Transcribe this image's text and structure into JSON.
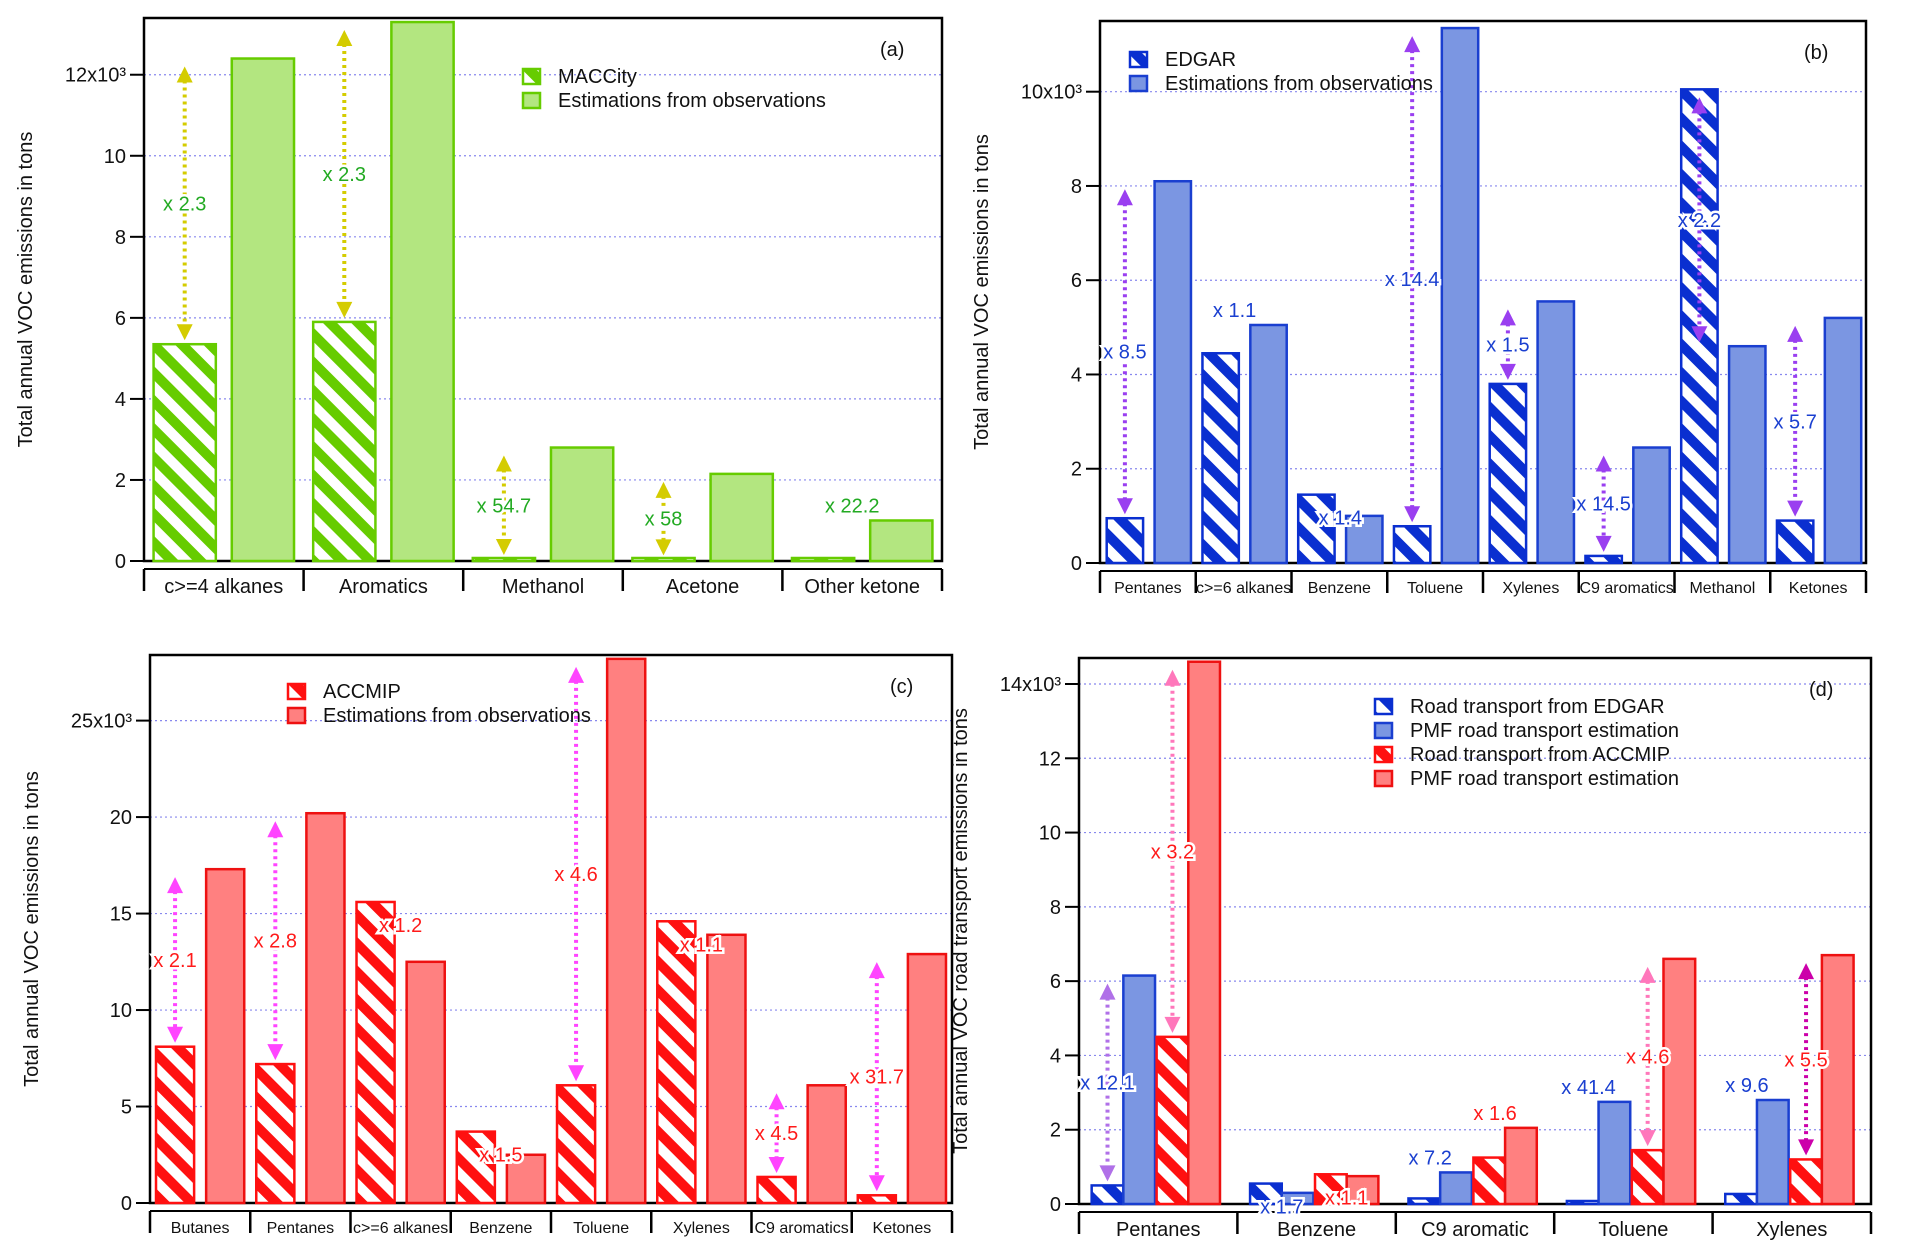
{
  "chart_data": [
    {
      "type": "bar",
      "panel_label": "(a)",
      "ylabel": "Total annual VOC emissions in tons",
      "ylim": [
        0,
        13.4
      ],
      "y_multiplier": "x10³",
      "ticks": [
        0,
        2,
        4,
        6,
        8,
        10,
        12
      ],
      "tick_labels": [
        "0",
        "2",
        "4",
        "6",
        "8",
        "10",
        "12x10³"
      ],
      "grid": true,
      "legend_position": "top-center",
      "categories": [
        "c>=4 alkanes",
        "Aromatics",
        "Methanol",
        "Acetone",
        "Other ketone"
      ],
      "series": [
        {
          "name": "MACCity",
          "hatched": true,
          "color": "#66cc00",
          "values": [
            5.35,
            5.9,
            0.05,
            0.04,
            0.05
          ]
        },
        {
          "name": "Estimations from observations",
          "hatched": false,
          "color": "#b3e680",
          "edge": "#66cc00",
          "values": [
            12.4,
            13.3,
            2.8,
            2.15,
            1.0
          ]
        }
      ],
      "ratio_color": "#22aa22",
      "arrow_color": "#d4cc00",
      "ratios": [
        {
          "category": 0,
          "pair": [
            0,
            1
          ],
          "label": "x 2.3",
          "arrow": true
        },
        {
          "category": 1,
          "pair": [
            0,
            1
          ],
          "label": "x 2.3",
          "arrow": true
        },
        {
          "category": 2,
          "pair": [
            0,
            1
          ],
          "label": "x 54.7",
          "arrow": true
        },
        {
          "category": 3,
          "pair": [
            0,
            1
          ],
          "label": "x 58",
          "arrow": true
        },
        {
          "category": 4,
          "pair": [
            0,
            1
          ],
          "label": "x 22.2",
          "arrow": false
        }
      ]
    },
    {
      "type": "bar",
      "panel_label": "(b)",
      "ylabel": "Total annual VOC emissions in tons",
      "ylim": [
        0,
        11.5
      ],
      "ticks": [
        0,
        2,
        4,
        6,
        8,
        10
      ],
      "tick_labels": [
        "0",
        "2",
        "4",
        "6",
        "8",
        "10x10³"
      ],
      "grid": true,
      "legend_position": "top-left",
      "categories": [
        "Pentanes",
        "c>=6 alkanes",
        "Benzene",
        "Toluene",
        "Xylenes",
        "C9 aromatics",
        "Methanol",
        "Ketones"
      ],
      "series": [
        {
          "name": "EDGAR",
          "hatched": true,
          "color": "#0a2fd0",
          "values": [
            0.95,
            4.45,
            1.45,
            0.78,
            3.8,
            0.15,
            10.05,
            0.9
          ]
        },
        {
          "name": "Estimations from observations",
          "hatched": false,
          "color": "#7b96e2",
          "edge": "#1a3fd0",
          "values": [
            8.1,
            5.05,
            1.0,
            11.35,
            5.55,
            2.45,
            4.6,
            5.2
          ]
        }
      ],
      "ratio_color": "#1a3fd0",
      "arrow_color": "#9a3ff0",
      "ratios": [
        {
          "category": 0,
          "pair": [
            0,
            1
          ],
          "label": "x 8.5",
          "arrow": true
        },
        {
          "category": 1,
          "pair": [
            0,
            1
          ],
          "label": "x 1.1",
          "arrow": false
        },
        {
          "category": 2,
          "pair": [
            0,
            1
          ],
          "label": "x 1.4",
          "arrow": false
        },
        {
          "category": 3,
          "pair": [
            0,
            1
          ],
          "label": "x 14.4",
          "arrow": true
        },
        {
          "category": 4,
          "pair": [
            0,
            1
          ],
          "label": "x 1.5",
          "arrow": true
        },
        {
          "category": 5,
          "pair": [
            0,
            1
          ],
          "label": "x 14.5",
          "arrow": true
        },
        {
          "category": 6,
          "pair": [
            0,
            1
          ],
          "label": "x 2.2",
          "arrow": true
        },
        {
          "category": 7,
          "pair": [
            0,
            1
          ],
          "label": "x 5.7",
          "arrow": true
        }
      ]
    },
    {
      "type": "bar",
      "panel_label": "(c)",
      "ylabel": "Total annual VOC emissions in tons",
      "ylim": [
        0,
        28.4
      ],
      "ticks": [
        0,
        5,
        10,
        15,
        20,
        25
      ],
      "tick_labels": [
        "0",
        "5",
        "10",
        "15",
        "20",
        "25x10³"
      ],
      "grid": true,
      "legend_position": "top-left",
      "categories": [
        "Butanes",
        "Pentanes",
        "c>=6 alkanes",
        "Benzene",
        "Toluene",
        "Xylenes",
        "C9 aromatics",
        "Ketones"
      ],
      "series": [
        {
          "name": "ACCMIP",
          "hatched": true,
          "color": "#ff1010",
          "values": [
            8.1,
            7.2,
            15.6,
            3.7,
            6.1,
            14.6,
            1.35,
            0.4
          ]
        },
        {
          "name": "Estimations from observations",
          "hatched": false,
          "color": "#ff8080",
          "edge": "#ee1111",
          "values": [
            17.3,
            20.2,
            12.5,
            2.5,
            28.2,
            13.9,
            6.1,
            12.9
          ]
        }
      ],
      "ratio_color": "#ff1a1a",
      "arrow_color": "#ff44ff",
      "ratios": [
        {
          "category": 0,
          "pair": [
            0,
            1
          ],
          "label": "x 2.1",
          "arrow": true
        },
        {
          "category": 1,
          "pair": [
            0,
            1
          ],
          "label": "x 2.8",
          "arrow": true
        },
        {
          "category": 2,
          "pair": [
            0,
            1
          ],
          "label": "x 1.2",
          "arrow": false
        },
        {
          "category": 3,
          "pair": [
            0,
            1
          ],
          "label": "x 1.5",
          "arrow": false
        },
        {
          "category": 4,
          "pair": [
            0,
            1
          ],
          "label": "x 4.6",
          "arrow": true
        },
        {
          "category": 5,
          "pair": [
            0,
            1
          ],
          "label": "x 1.1",
          "arrow": false
        },
        {
          "category": 6,
          "pair": [
            0,
            1
          ],
          "label": "x 4.5",
          "arrow": true
        },
        {
          "category": 7,
          "pair": [
            0,
            1
          ],
          "label": "x 31.7",
          "arrow": true
        }
      ]
    },
    {
      "type": "bar",
      "panel_label": "(d)",
      "ylabel": "Total annual VOC road transport emissions in tons",
      "ylim": [
        0,
        14.7
      ],
      "ticks": [
        0,
        2,
        4,
        6,
        8,
        10,
        12,
        14
      ],
      "tick_labels": [
        "0",
        "2",
        "4",
        "6",
        "8",
        "10",
        "12",
        "14x10³"
      ],
      "grid": true,
      "legend_position": "top-center",
      "categories": [
        "Pentanes",
        "Benzene",
        "C9 aromatic",
        "Toluene",
        "Xylenes"
      ],
      "series": [
        {
          "name": "Road transport from EDGAR",
          "hatched": true,
          "color": "#0a2fd0",
          "values": [
            0.5,
            0.55,
            0.15,
            0.07,
            0.27
          ]
        },
        {
          "name": "PMF road transport estimation",
          "hatched": false,
          "color": "#7b96e2",
          "edge": "#1a3fd0",
          "values": [
            6.15,
            0.3,
            0.85,
            2.75,
            2.8
          ]
        },
        {
          "name": "Road transport from ACCMIP",
          "hatched": true,
          "color": "#ff1010",
          "values": [
            4.5,
            0.8,
            1.25,
            1.45,
            1.2
          ]
        },
        {
          "name": "PMF road transport estimation",
          "hatched": false,
          "color": "#ff8080",
          "edge": "#ee1111",
          "values": [
            14.6,
            0.75,
            2.05,
            6.6,
            6.7
          ]
        }
      ],
      "ratio_color": "#1a3fd0",
      "ratios": [
        {
          "category": 0,
          "pair": [
            0,
            1
          ],
          "label": "x 12.1",
          "arrow": true,
          "color": "#1a3fd0",
          "arrow_color": "#b070e8"
        },
        {
          "category": 0,
          "pair": [
            2,
            3
          ],
          "label": "x 3.2",
          "arrow": true,
          "color": "#ff1a1a",
          "arrow_color": "#ff77bb"
        },
        {
          "category": 1,
          "pair": [
            0,
            1
          ],
          "label": "x 1.7",
          "arrow": false,
          "color": "#1a3fd0"
        },
        {
          "category": 1,
          "pair": [
            2,
            3
          ],
          "label": "x 1.1",
          "arrow": false,
          "color": "#ff1a1a"
        },
        {
          "category": 2,
          "pair": [
            0,
            1
          ],
          "label": "x 7.2",
          "arrow": false,
          "color": "#1a3fd0"
        },
        {
          "category": 2,
          "pair": [
            2,
            3
          ],
          "label": "x 1.6",
          "arrow": false,
          "color": "#ff1a1a"
        },
        {
          "category": 3,
          "pair": [
            0,
            1
          ],
          "label": "x 41.4",
          "arrow": false,
          "color": "#1a3fd0"
        },
        {
          "category": 3,
          "pair": [
            2,
            3
          ],
          "label": "x 4.6",
          "arrow": true,
          "color": "#ff1a1a",
          "arrow_color": "#ff77bb"
        },
        {
          "category": 4,
          "pair": [
            0,
            1
          ],
          "label": "x 9.6",
          "arrow": false,
          "color": "#1a3fd0"
        },
        {
          "category": 4,
          "pair": [
            2,
            3
          ],
          "label": "x 5.5",
          "arrow": true,
          "color": "#ff1a1a",
          "arrow_color": "#cc00aa"
        }
      ]
    }
  ]
}
